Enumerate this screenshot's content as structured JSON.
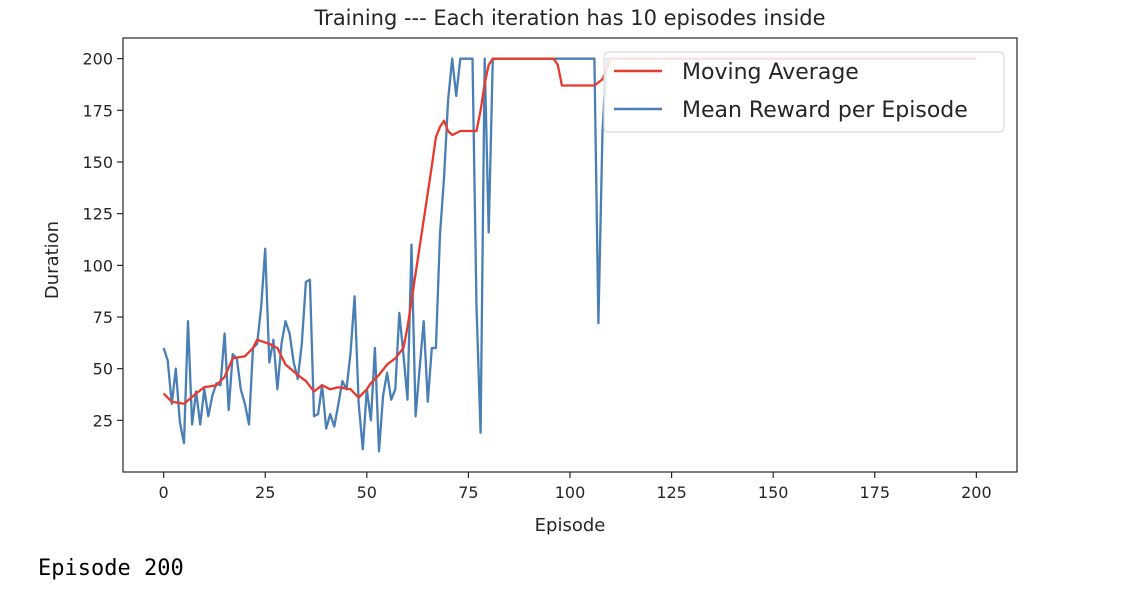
{
  "status": {
    "text": "Episode 200"
  },
  "colors": {
    "moving_average": "#e8392e",
    "mean_reward": "#4a7fb5",
    "axis": "#262626",
    "legend_border": "#d9d9d9"
  },
  "chart_data": {
    "type": "line",
    "title": "Training --- Each iteration has 10 episodes inside",
    "xlabel": "Episode",
    "ylabel": "Duration",
    "xlim": [
      -10,
      210
    ],
    "ylim": [
      0,
      210
    ],
    "xticks": [
      0,
      25,
      50,
      75,
      100,
      125,
      150,
      175,
      200
    ],
    "yticks": [
      25,
      50,
      75,
      100,
      125,
      150,
      175,
      200
    ],
    "grid": false,
    "legend_position": "top-right",
    "series": [
      {
        "name": "Moving Average",
        "color": "#e8392e",
        "points": [
          [
            0,
            38
          ],
          [
            2,
            34
          ],
          [
            5,
            33
          ],
          [
            8,
            38
          ],
          [
            10,
            41
          ],
          [
            13,
            42
          ],
          [
            15,
            46
          ],
          [
            17,
            55
          ],
          [
            20,
            56
          ],
          [
            22,
            60
          ],
          [
            23,
            64
          ],
          [
            26,
            62
          ],
          [
            28,
            60
          ],
          [
            30,
            52
          ],
          [
            33,
            47
          ],
          [
            35,
            44
          ],
          [
            37,
            39
          ],
          [
            39,
            42
          ],
          [
            41,
            40
          ],
          [
            43,
            41
          ],
          [
            46,
            40
          ],
          [
            48,
            36
          ],
          [
            50,
            40
          ],
          [
            51,
            43
          ],
          [
            53,
            47
          ],
          [
            55,
            52
          ],
          [
            57,
            55
          ],
          [
            59,
            60
          ],
          [
            60,
            70
          ],
          [
            62,
            96
          ],
          [
            64,
            122
          ],
          [
            66,
            148
          ],
          [
            67,
            162
          ],
          [
            68,
            167
          ],
          [
            69,
            170
          ],
          [
            70,
            165
          ],
          [
            71,
            163
          ],
          [
            73,
            165
          ],
          [
            77,
            165
          ],
          [
            78,
            175
          ],
          [
            79,
            188
          ],
          [
            80,
            197
          ],
          [
            81,
            200
          ],
          [
            83,
            200
          ],
          [
            96,
            200
          ],
          [
            97,
            197
          ],
          [
            98,
            187
          ],
          [
            105,
            187
          ],
          [
            106,
            187
          ],
          [
            108,
            190
          ],
          [
            110,
            200
          ],
          [
            200,
            200
          ]
        ]
      },
      {
        "name": "Mean Reward per Episode",
        "color": "#4a7fb5",
        "points": [
          [
            0,
            60
          ],
          [
            1,
            54
          ],
          [
            2,
            33
          ],
          [
            3,
            50
          ],
          [
            4,
            24
          ],
          [
            5,
            14
          ],
          [
            6,
            73
          ],
          [
            7,
            23
          ],
          [
            8,
            39
          ],
          [
            9,
            23
          ],
          [
            10,
            40
          ],
          [
            11,
            27
          ],
          [
            12,
            37
          ],
          [
            13,
            43
          ],
          [
            14,
            42
          ],
          [
            15,
            67
          ],
          [
            16,
            30
          ],
          [
            17,
            57
          ],
          [
            18,
            55
          ],
          [
            19,
            40
          ],
          [
            20,
            33
          ],
          [
            21,
            23
          ],
          [
            22,
            60
          ],
          [
            23,
            62
          ],
          [
            24,
            80
          ],
          [
            25,
            108
          ],
          [
            26,
            53
          ],
          [
            27,
            64
          ],
          [
            28,
            40
          ],
          [
            29,
            62
          ],
          [
            30,
            73
          ],
          [
            31,
            67
          ],
          [
            32,
            53
          ],
          [
            33,
            45
          ],
          [
            34,
            62
          ],
          [
            35,
            92
          ],
          [
            36,
            93
          ],
          [
            37,
            27
          ],
          [
            38,
            28
          ],
          [
            39,
            42
          ],
          [
            40,
            21
          ],
          [
            41,
            28
          ],
          [
            42,
            22
          ],
          [
            43,
            33
          ],
          [
            44,
            44
          ],
          [
            45,
            40
          ],
          [
            46,
            58
          ],
          [
            47,
            85
          ],
          [
            48,
            33
          ],
          [
            49,
            11
          ],
          [
            50,
            40
          ],
          [
            51,
            25
          ],
          [
            52,
            60
          ],
          [
            53,
            10
          ],
          [
            54,
            37
          ],
          [
            55,
            48
          ],
          [
            56,
            35
          ],
          [
            57,
            40
          ],
          [
            58,
            77
          ],
          [
            59,
            57
          ],
          [
            60,
            35
          ],
          [
            61,
            110
          ],
          [
            62,
            27
          ],
          [
            63,
            50
          ],
          [
            64,
            73
          ],
          [
            65,
            34
          ],
          [
            66,
            60
          ],
          [
            67,
            60
          ],
          [
            68,
            115
          ],
          [
            69,
            142
          ],
          [
            70,
            180
          ],
          [
            71,
            200
          ],
          [
            72,
            182
          ],
          [
            73,
            200
          ],
          [
            74,
            200
          ],
          [
            75,
            200
          ],
          [
            76,
            200
          ],
          [
            77,
            80
          ],
          [
            78,
            19
          ],
          [
            79,
            200
          ],
          [
            80,
            116
          ],
          [
            81,
            200
          ],
          [
            82,
            200
          ],
          [
            84,
            200
          ],
          [
            106,
            200
          ],
          [
            107,
            72
          ],
          [
            108,
            165
          ],
          [
            109,
            200
          ],
          [
            200,
            200
          ]
        ]
      }
    ]
  }
}
